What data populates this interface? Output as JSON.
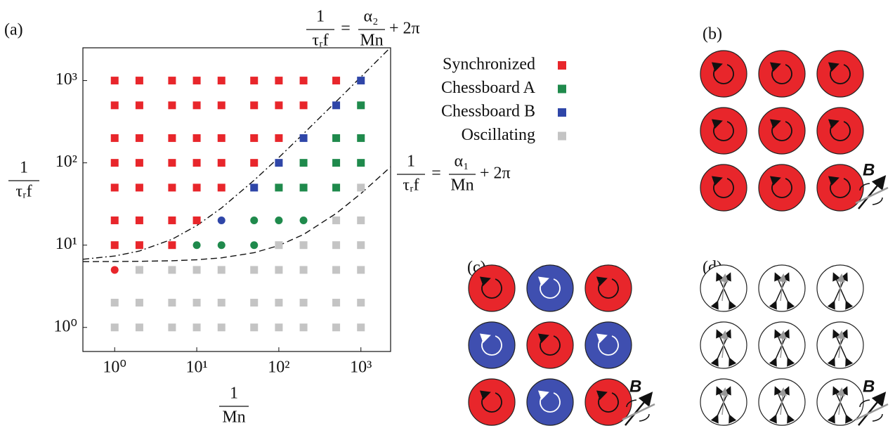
{
  "panel_a": "(a)",
  "chart_data": {
    "type": "scatter",
    "x_label": {
      "num": "1",
      "den": "Mn"
    },
    "y_label": {
      "num": "1",
      "den": "τᵣf"
    },
    "log_x": true,
    "log_y": true,
    "xlim": [
      0.41,
      2300
    ],
    "ylim": [
      0.51,
      2500
    ],
    "xticks": [
      {
        "value": 1,
        "label": "10⁰"
      },
      {
        "value": 10,
        "label": "10¹"
      },
      {
        "value": 100,
        "label": "10²"
      },
      {
        "value": 1000,
        "label": "10³"
      }
    ],
    "yticks": [
      {
        "value": 1,
        "label": "10⁰"
      },
      {
        "value": 10,
        "label": "10¹"
      },
      {
        "value": 100,
        "label": "10²"
      },
      {
        "value": 1000,
        "label": "10³"
      }
    ],
    "series": [
      {
        "name": "Synchronized",
        "color": "#e8262b",
        "x": [
          1,
          2,
          5,
          10,
          20,
          50,
          100,
          200,
          500,
          1,
          2,
          5,
          10,
          20,
          50,
          100,
          200,
          1,
          2,
          5,
          10,
          20,
          50,
          100,
          1,
          2,
          5,
          10,
          20,
          50,
          1,
          2,
          5,
          10,
          20,
          1,
          2,
          5,
          10,
          1,
          2,
          5,
          1
        ],
        "values": [
          1000,
          1000,
          1000,
          1000,
          1000,
          1000,
          1000,
          1000,
          1000,
          500,
          500,
          500,
          500,
          500,
          500,
          500,
          500,
          200,
          200,
          200,
          200,
          200,
          200,
          200,
          100,
          100,
          100,
          100,
          100,
          100,
          50,
          50,
          50,
          50,
          50,
          20,
          20,
          20,
          20,
          10,
          10,
          10,
          5
        ],
        "markers": [
          "square",
          "square",
          "square",
          "square",
          "square",
          "square",
          "square",
          "square",
          "square",
          "square",
          "square",
          "square",
          "square",
          "square",
          "square",
          "square",
          "square",
          "square",
          "square",
          "square",
          "square",
          "square",
          "square",
          "square",
          "square",
          "square",
          "square",
          "square",
          "square",
          "square",
          "square",
          "square",
          "square",
          "square",
          "square",
          "square",
          "square",
          "square",
          "square",
          "square",
          "square",
          "square",
          "circle"
        ]
      },
      {
        "name": "Chessboard A",
        "color": "#1f8a4c",
        "x": [
          1000,
          500,
          1000,
          200,
          500,
          1000,
          100,
          200,
          500,
          50,
          100,
          200,
          10,
          20,
          50
        ],
        "values": [
          500,
          200,
          200,
          100,
          100,
          100,
          50,
          50,
          50,
          20,
          20,
          20,
          10,
          10,
          10
        ],
        "markers": [
          "square",
          "square",
          "square",
          "square",
          "square",
          "square",
          "square",
          "square",
          "square",
          "circle",
          "circle",
          "circle",
          "circle",
          "circle",
          "circle"
        ]
      },
      {
        "name": "Chessboard B",
        "color": "#2f46a8",
        "x": [
          1000,
          500,
          200,
          100,
          50,
          20
        ],
        "values": [
          1000,
          500,
          200,
          100,
          50,
          20
        ],
        "markers": [
          "square",
          "square",
          "square",
          "square",
          "square",
          "circle"
        ]
      },
      {
        "name": "Oscillating",
        "color": "#c4c4c4",
        "x": [
          1000,
          500,
          1000,
          100,
          200,
          500,
          1000,
          2,
          5,
          10,
          20,
          50,
          100,
          200,
          500,
          1000,
          1,
          2,
          5,
          10,
          20,
          50,
          100,
          200,
          500,
          1000,
          1,
          2,
          5,
          10,
          20,
          50,
          100,
          200,
          500,
          1000
        ],
        "values": [
          50,
          20,
          20,
          10,
          10,
          10,
          10,
          5,
          5,
          5,
          5,
          5,
          5,
          5,
          5,
          5,
          2,
          2,
          2,
          2,
          2,
          2,
          2,
          2,
          2,
          2,
          1,
          1,
          1,
          1,
          1,
          1,
          1,
          1,
          1,
          1
        ],
        "markers": [
          "square",
          "square",
          "square",
          "square",
          "square",
          "square",
          "square",
          "square",
          "square",
          "square",
          "square",
          "square",
          "square",
          "square",
          "square",
          "square",
          "square",
          "square",
          "square",
          "square",
          "square",
          "square",
          "square",
          "square",
          "square",
          "square",
          "square",
          "square",
          "square",
          "square",
          "square",
          "square",
          "square",
          "square",
          "square",
          "square"
        ]
      }
    ],
    "curves": [
      {
        "style": "dash-dot",
        "x": [
          0.41,
          1,
          2,
          5,
          10,
          20,
          50,
          100,
          200,
          500,
          1000,
          2300
        ],
        "values": [
          6.73,
          7.38,
          8.48,
          11.78,
          17.28,
          28.28,
          61.28,
          116.3,
          226.3,
          556.3,
          1106,
          2536
        ]
      },
      {
        "style": "dashed",
        "x": [
          0.41,
          1,
          2,
          5,
          10,
          20,
          50,
          100,
          200,
          500,
          1000,
          2300
        ],
        "values": [
          6.3,
          6.32,
          6.36,
          6.46,
          6.64,
          7.0,
          8.08,
          9.88,
          13.48,
          24.28,
          42.28,
          89.1
        ]
      }
    ],
    "annotations": [
      {
        "lhs_num": "1",
        "lhs_den": "τᵣf",
        "eq": "=",
        "rhs_num": "α₂",
        "rhs_den": "Mn",
        "tail": "+ 2π"
      },
      {
        "lhs_num": "1",
        "lhs_den": "τᵣf",
        "eq": "=",
        "rhs_num": "α₁",
        "rhs_den": "Mn",
        "tail": "+ 2π"
      }
    ]
  },
  "panels": [
    {
      "label": "(b)",
      "field": "B"
    },
    {
      "label": "(c)",
      "field": "B"
    },
    {
      "label": "(d)",
      "field": "B"
    }
  ]
}
